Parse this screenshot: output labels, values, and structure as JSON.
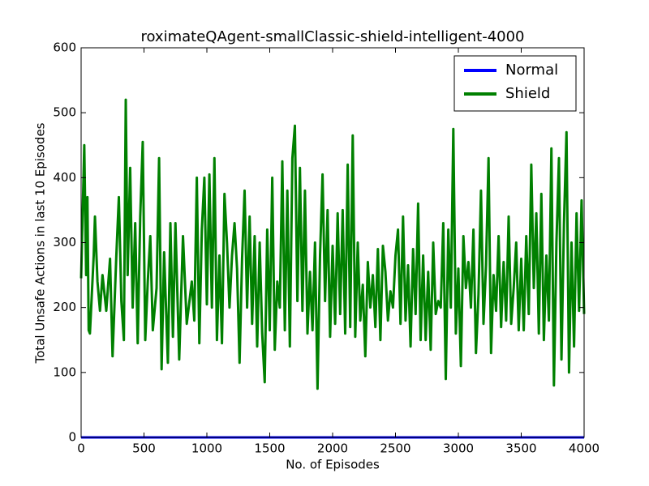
{
  "chart_data": {
    "type": "line",
    "title": "roximateQAgent-smallClassic-shield-intelligent-4000",
    "xlabel": "No. of Episodes",
    "ylabel": "Total Unsafe Actions in last 10 Episodes",
    "xlim": [
      0,
      4000
    ],
    "xticks": [
      0,
      500,
      1000,
      1500,
      2000,
      2500,
      3000,
      3500,
      4000
    ],
    "ylim": [
      0,
      600
    ],
    "yticks": [
      0,
      100,
      200,
      300,
      400,
      500,
      600
    ],
    "legend": "upper right",
    "series": [
      {
        "name": "Normal",
        "color": "#0000ff",
        "x": [
          0,
          4000
        ],
        "values": [
          0,
          0
        ]
      },
      {
        "name": "Shield",
        "color": "#008000",
        "x": [
          0,
          25,
          40,
          50,
          60,
          70,
          100,
          110,
          130,
          150,
          170,
          200,
          230,
          250,
          280,
          300,
          320,
          340,
          355,
          370,
          390,
          410,
          430,
          450,
          470,
          490,
          510,
          530,
          550,
          570,
          600,
          620,
          640,
          660,
          690,
          710,
          730,
          750,
          780,
          810,
          840,
          880,
          900,
          920,
          940,
          960,
          980,
          1000,
          1020,
          1040,
          1060,
          1080,
          1100,
          1120,
          1140,
          1160,
          1180,
          1200,
          1220,
          1240,
          1260,
          1280,
          1300,
          1320,
          1340,
          1360,
          1380,
          1400,
          1420,
          1440,
          1460,
          1480,
          1500,
          1520,
          1540,
          1560,
          1580,
          1600,
          1620,
          1640,
          1660,
          1680,
          1700,
          1720,
          1740,
          1760,
          1780,
          1800,
          1820,
          1840,
          1860,
          1880,
          1900,
          1920,
          1940,
          1960,
          1980,
          2000,
          2020,
          2040,
          2060,
          2080,
          2100,
          2120,
          2140,
          2160,
          2180,
          2200,
          2220,
          2240,
          2260,
          2280,
          2300,
          2320,
          2340,
          2360,
          2380,
          2400,
          2420,
          2440,
          2460,
          2480,
          2500,
          2520,
          2540,
          2560,
          2580,
          2600,
          2620,
          2640,
          2660,
          2680,
          2700,
          2720,
          2740,
          2760,
          2780,
          2800,
          2820,
          2840,
          2860,
          2880,
          2900,
          2920,
          2940,
          2960,
          2980,
          3000,
          3020,
          3040,
          3060,
          3080,
          3100,
          3120,
          3140,
          3160,
          3180,
          3200,
          3220,
          3240,
          3260,
          3280,
          3300,
          3320,
          3340,
          3360,
          3380,
          3400,
          3420,
          3440,
          3460,
          3480,
          3500,
          3520,
          3540,
          3560,
          3580,
          3600,
          3620,
          3640,
          3660,
          3680,
          3700,
          3720,
          3740,
          3760,
          3780,
          3800,
          3820,
          3840,
          3860,
          3880,
          3900,
          3920,
          3940,
          3960,
          3980,
          4000
        ],
        "values": [
          245,
          450,
          250,
          370,
          165,
          160,
          280,
          340,
          240,
          195,
          250,
          195,
          275,
          125,
          280,
          370,
          210,
          150,
          520,
          250,
          415,
          200,
          330,
          145,
          340,
          455,
          150,
          240,
          310,
          165,
          230,
          430,
          105,
          285,
          115,
          330,
          155,
          330,
          120,
          310,
          175,
          240,
          180,
          400,
          145,
          320,
          400,
          205,
          405,
          200,
          430,
          150,
          280,
          145,
          375,
          300,
          200,
          280,
          330,
          260,
          115,
          275,
          380,
          200,
          340,
          175,
          310,
          140,
          300,
          160,
          85,
          320,
          165,
          400,
          135,
          240,
          200,
          425,
          165,
          380,
          140,
          430,
          480,
          210,
          415,
          195,
          380,
          160,
          255,
          165,
          300,
          75,
          280,
          405,
          210,
          350,
          155,
          295,
          175,
          345,
          190,
          350,
          160,
          420,
          170,
          465,
          155,
          300,
          180,
          235,
          125,
          270,
          200,
          250,
          170,
          290,
          150,
          295,
          255,
          180,
          225,
          200,
          280,
          320,
          175,
          340,
          180,
          265,
          140,
          290,
          190,
          360,
          150,
          280,
          150,
          255,
          135,
          300,
          190,
          210,
          200,
          330,
          90,
          320,
          200,
          475,
          160,
          260,
          110,
          310,
          230,
          270,
          200,
          320,
          130,
          220,
          380,
          175,
          265,
          430,
          130,
          250,
          195,
          310,
          170,
          270,
          180,
          340,
          175,
          230,
          300,
          165,
          275,
          165,
          310,
          190,
          420,
          230,
          345,
          160,
          375,
          150,
          280,
          180,
          445,
          80,
          300,
          430,
          120,
          330,
          470,
          100,
          300,
          140,
          345,
          195,
          365,
          190
        ]
      }
    ]
  }
}
